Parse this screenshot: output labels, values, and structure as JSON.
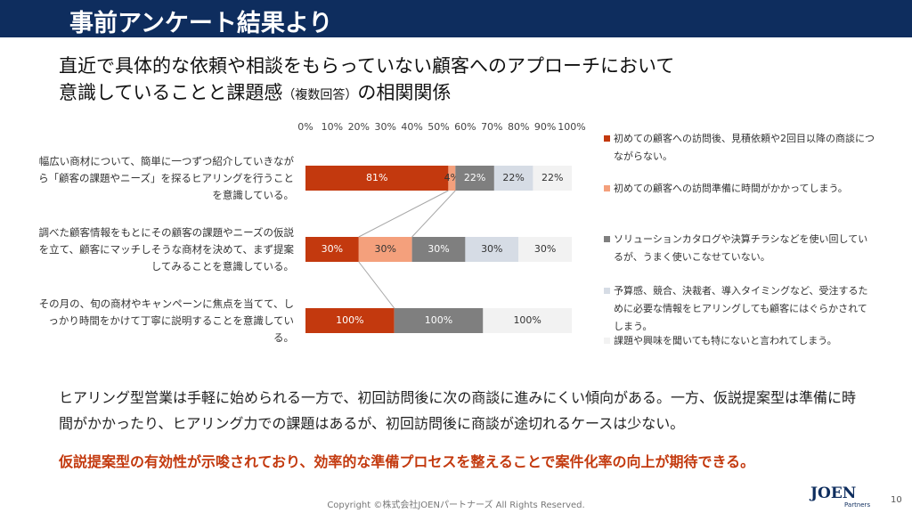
{
  "header": {
    "title": "事前アンケート結果より"
  },
  "heading": {
    "line1": "直近で具体的な依頼や相談をもらっていない顧客へのアプローチにおいて",
    "line2_main": "意識していることと課題感",
    "line2_note": "（複数回答）",
    "line2_end": "の相関関係"
  },
  "chart_data": {
    "type": "bar",
    "orientation": "horizontal",
    "stacking": "percent",
    "categories": [
      "幅広い商材について、簡単に一つずつ紹介していきながら「顧客の課題やニーズ」を探るヒアリングを行うことを意識している。",
      "調べた顧客情報をもとにその顧客の課題やニーズの仮説を立て、顧客にマッチしそうな商材を決めて、まず提案してみることを意識している。",
      "その月の、旬の商材やキャンペーンに焦点を当てて、しっかり時間をかけて丁寧に説明することを意識している。"
    ],
    "series": [
      {
        "name": "初めての顧客への訪問後、見積依頼や2回目以降の商談につながらない。",
        "color": "#c3390e",
        "values": [
          81,
          30,
          100
        ],
        "value_labels": [
          "81%",
          "30%",
          "100%"
        ]
      },
      {
        "name": "初めての顧客への訪問準備に時間がかかってしまう。",
        "color": "#f4a07c",
        "values": [
          4,
          30,
          null
        ],
        "value_labels": [
          "4%",
          "30%",
          null
        ]
      },
      {
        "name": "ソリューションカタログや決算チラシなどを使い回しているが、うまく使いこなせていない。",
        "color": "#7f7f7f",
        "values": [
          22,
          30,
          100
        ],
        "value_labels": [
          "22%",
          "30%",
          "100%"
        ]
      },
      {
        "name": "予算感、競合、決裁者、導入タイミングなど、受注するために必要な情報をヒアリングしても顧客にはぐらかされてしまう。",
        "color": "#d6dce5",
        "values": [
          22,
          30,
          null
        ],
        "value_labels": [
          "22%",
          "30%",
          null
        ]
      },
      {
        "name": "課題や興味を聞いても特にないと言われてしまう。",
        "color": "#f2f2f2",
        "values": [
          22,
          30,
          100
        ],
        "value_labels": [
          "22%",
          "30%",
          "100%"
        ]
      }
    ],
    "xlim": [
      0,
      100
    ],
    "xticks": [
      {
        "value": 0,
        "label": "0%"
      },
      {
        "value": 10,
        "label": "10%"
      },
      {
        "value": 20,
        "label": "20%"
      },
      {
        "value": 30,
        "label": "30%"
      },
      {
        "value": 40,
        "label": "40%"
      },
      {
        "value": 50,
        "label": "50%"
      },
      {
        "value": 60,
        "label": "60%"
      },
      {
        "value": 70,
        "label": "70%"
      },
      {
        "value": 80,
        "label": "80%"
      },
      {
        "value": 90,
        "label": "90%"
      },
      {
        "value": 100,
        "label": "100%"
      }
    ],
    "legend": "right"
  },
  "body": {
    "text": "ヒアリング型営業は手軽に始められる一方で、初回訪問後に次の商談に進みにくい傾向がある。一方、仮説提案型は準備に時間がかかったり、ヒアリング力での課題はあるが、初回訪問後に商談が途切れるケースは少ない。",
    "highlight": "仮説提案型の有効性が示唆されており、効率的な準備プロセスを整えることで案件化率の向上が期待できる。"
  },
  "footer": {
    "copyright": "Copyright ©株式会社JOENパートナーズ All Rights Reserved.",
    "logo": "JOEN",
    "logo_sub": "Partners",
    "page": "10"
  }
}
